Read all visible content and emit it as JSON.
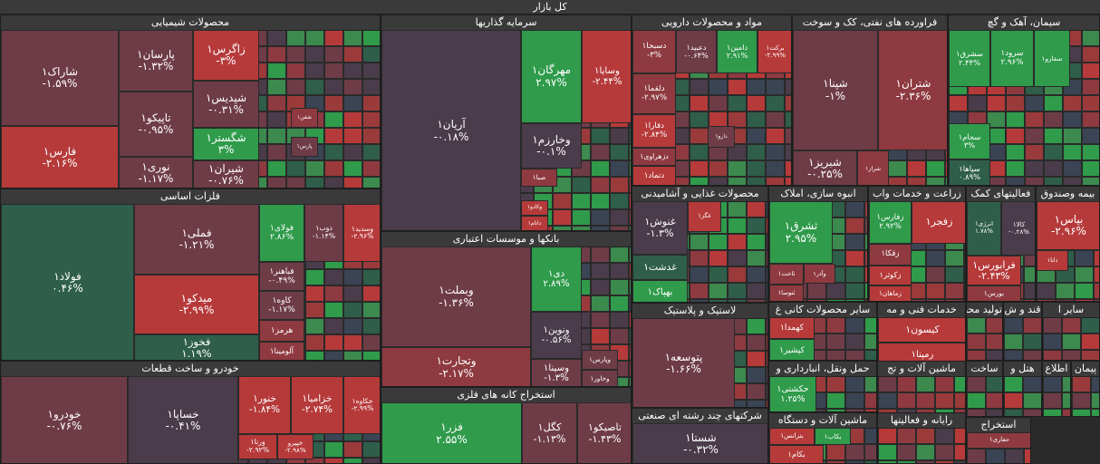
{
  "header": {
    "title": "کل بازار"
  },
  "sectors": [
    {
      "name": "محصولات شیمیایی",
      "tiles": [
        {
          "label": "شاراک۱",
          "change": "-۱.۵۹%"
        },
        {
          "label": "فارس۱",
          "change": "-۲.۱۶%"
        },
        {
          "label": "پارسان۱",
          "change": "-۱.۳۲%"
        },
        {
          "label": "تاپیکو۱",
          "change": "-۰.۹۵%"
        },
        {
          "label": "نوری۱",
          "change": "-۱.۱۷%"
        },
        {
          "label": "زاگرس۱",
          "change": "-۳%"
        },
        {
          "label": "شپدیس۱",
          "change": "-۰.۳۱%"
        },
        {
          "label": "شگستر۱",
          "change": "۳%"
        },
        {
          "label": "شیران۱",
          "change": "-۰.۷۶%"
        },
        {
          "label": "شفن۱"
        },
        {
          "label": "پارس۱"
        }
      ]
    },
    {
      "name": "فلزات اساسی",
      "tiles": [
        {
          "label": "فولاد۱",
          "change": "۰.۴۶%"
        },
        {
          "label": "فملی۱",
          "change": "-۱.۲۱%"
        },
        {
          "label": "میدکو۱",
          "change": "-۲.۹۹%"
        },
        {
          "label": "فخوز۱",
          "change": "۱.۱۹%"
        },
        {
          "label": "فولای۱",
          "change": "۲.۸۶%"
        },
        {
          "label": "ذوب۱",
          "change": "-۱.۱۴%"
        },
        {
          "label": "وسدید۱",
          "change": "-۲.۹۶%"
        },
        {
          "label": "فباهنر۱",
          "change": "-۰.۴۹%"
        },
        {
          "label": "کاوه۱",
          "change": "-۱.۱۷%"
        },
        {
          "label": "هرمز۱"
        },
        {
          "label": "آلومینا۱"
        }
      ]
    },
    {
      "name": "خودرو و ساخت قطعات",
      "tiles": [
        {
          "label": "خودرو۱",
          "change": "-۰.۷۶%"
        },
        {
          "label": "خساپا۱",
          "change": "-۰.۴۱%"
        },
        {
          "label": "خنور۱",
          "change": "-۱.۸۴%"
        },
        {
          "label": "خزامیا۱",
          "change": "-۲.۷۴%"
        },
        {
          "label": "خکاوه۱",
          "change": "-۲.۹۹%"
        },
        {
          "label": "ورنا۱",
          "change": "-۲.۹۲%"
        },
        {
          "label": "خپیرو",
          "change": "-۲.۹۸%"
        }
      ]
    },
    {
      "name": "سرمایه گذاریها",
      "tiles": [
        {
          "label": "آریان۱",
          "change": "-۰.۱۸%"
        },
        {
          "label": "مهرگان۱",
          "change": "۲.۹۷%"
        },
        {
          "label": "وسایا۱",
          "change": "-۲.۴۴%"
        },
        {
          "label": "وخارزم۱",
          "change": "-۰.۱%"
        },
        {
          "label": "صبا۱"
        },
        {
          "label": "وکادو۱"
        },
        {
          "label": "داتام۱"
        }
      ]
    },
    {
      "name": "بانکها و موسسات اعتباری",
      "tiles": [
        {
          "label": "وبملت۱",
          "change": "-۱.۳۶%"
        },
        {
          "label": "وتجارت۱",
          "change": "-۲.۱۷%"
        },
        {
          "label": "دی۱",
          "change": "۲.۸۹%"
        },
        {
          "label": "ونوین۱",
          "change": "-۰.۵۶%"
        },
        {
          "label": "وسینا۱",
          "change": "-۱.۳%"
        },
        {
          "label": "وپارس۱"
        },
        {
          "label": "وخاور۱"
        }
      ]
    },
    {
      "name": "استخراج کانه های فلزی",
      "tiles": [
        {
          "label": "فزر۱",
          "change": "۲.۵۵%"
        },
        {
          "label": "کگل۱",
          "change": "-۱.۱۳%"
        },
        {
          "label": "تاصیکو۱",
          "change": "-۱.۴۳%"
        }
      ]
    },
    {
      "name": "مواد و محصولات دارویی",
      "tiles": [
        {
          "label": "دسبحا۱",
          "change": "-۳%"
        },
        {
          "label": "دعبید۱",
          "change": "-۰.۶۴%"
        },
        {
          "label": "دامین۱",
          "change": "۲.۹۱%"
        },
        {
          "label": "برکت۱",
          "change": "-۲.۹۹%"
        },
        {
          "label": "دلقما۱",
          "change": "-۲.۹۷%"
        },
        {
          "label": "دفارا۱",
          "change": "-۲.۸۴%"
        },
        {
          "label": "دزهراوی۱"
        },
        {
          "label": "دتماد۱"
        },
        {
          "label": "دارو۱"
        }
      ]
    },
    {
      "name": "فراورده های نفتی، کک و سوخت",
      "tiles": [
        {
          "label": "شپنا۱",
          "change": "-۱%"
        },
        {
          "label": "شتران۱",
          "change": "-۲.۳۶%"
        },
        {
          "label": "شبریز۱",
          "change": "-۰.۲۵%"
        },
        {
          "label": "شراز۱"
        }
      ]
    },
    {
      "name": "سیمان، آهک و گچ",
      "tiles": [
        {
          "label": "سشرق۱",
          "change": "۲.۴۴%"
        },
        {
          "label": "سرود۱",
          "change": "۲.۹۶%"
        },
        {
          "label": "سفارو۱"
        },
        {
          "label": "سجام۱",
          "change": "۳%"
        },
        {
          "label": "سپاها۱",
          "change": "۰.۸۹%"
        }
      ]
    },
    {
      "name": "محصولات غذایی و آشامیدنی",
      "tiles": [
        {
          "label": "غنوش۱",
          "change": "-۱.۳%"
        },
        {
          "label": "غگز۱"
        },
        {
          "label": "غدشت۱"
        },
        {
          "label": "بهپاک۱"
        }
      ]
    },
    {
      "name": "انبوه سازی، املاک",
      "tiles": [
        {
          "label": "ثشرق۱",
          "change": "۲.۹۵%"
        },
        {
          "label": "ثاخت۱"
        },
        {
          "label": "وآذر۱"
        },
        {
          "label": "ثنوسا۱"
        }
      ]
    },
    {
      "name": "زراعت و خدمات واب",
      "tiles": [
        {
          "label": "زفارس۱",
          "change": "۲.۹۲%"
        },
        {
          "label": "زفجر۱"
        },
        {
          "label": "زقکا۱"
        },
        {
          "label": "زکوثر۱"
        },
        {
          "label": "زماهان۱"
        }
      ]
    },
    {
      "name": "فعالیتهای کمک",
      "tiles": [
        {
          "label": "انرژی۱",
          "change": "۱.۷۸%"
        },
        {
          "label": "کالا۱",
          "change": "-۰.۲۸%"
        },
        {
          "label": "فرابورس۱",
          "change": "-۲.۴۳%"
        },
        {
          "label": "بورس۱"
        }
      ]
    },
    {
      "name": "بیمه وصندوق",
      "tiles": [
        {
          "label": "بپاس۱",
          "change": "-۲.۹۶%"
        },
        {
          "label": "دانا۱"
        }
      ]
    },
    {
      "name": "لاستیک و پلاستیک",
      "tiles": [
        {
          "label": "پتوسعه۱",
          "change": "-۱.۶۶%"
        }
      ]
    },
    {
      "name": "شرکتهای چند رشته ای صنعتی",
      "tiles": [
        {
          "label": "شستا۱",
          "change": "-۰.۳۲%"
        }
      ]
    },
    {
      "name": "سایر محصولات کانی غ",
      "tiles": [
        {
          "label": "کهمدا۱"
        },
        {
          "label": "کپشیر۱"
        }
      ]
    },
    {
      "name": "خدمات فنی و مه",
      "tiles": [
        {
          "label": "کیسون۱"
        },
        {
          "label": "رمپنا۱"
        }
      ]
    },
    {
      "name": "تولید محص",
      "tiles": []
    },
    {
      "name": "قند و ش",
      "tiles": []
    },
    {
      "name": "سایر ا",
      "tiles": []
    },
    {
      "name": "حمل ونقل، انبارداری و",
      "tiles": [
        {
          "label": "حکشتی۱",
          "change": "۱.۲۵%"
        }
      ]
    },
    {
      "name": "ماشین آلات و تج",
      "tiles": []
    },
    {
      "name": "ساخت",
      "tiles": []
    },
    {
      "name": "هتل و",
      "tiles": []
    },
    {
      "name": "اطلاع",
      "tiles": []
    },
    {
      "name": "پیمان",
      "tiles": []
    },
    {
      "name": "ماشین آلات و دستگاه",
      "tiles": [
        {
          "label": "بترانس۱"
        },
        {
          "label": "بکاب۱"
        },
        {
          "label": "بکام۱"
        }
      ]
    },
    {
      "name": "رایانه و فعالیتها",
      "tiles": []
    },
    {
      "name": "استخراج",
      "tiles": [
        {
          "label": "حفاری۱"
        }
      ]
    }
  ]
}
